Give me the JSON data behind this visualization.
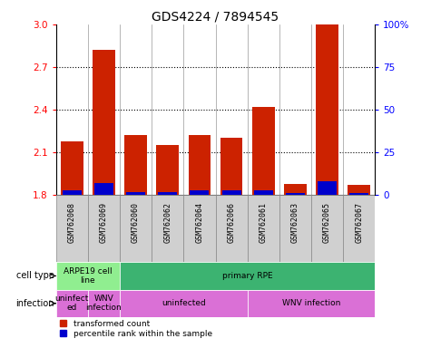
{
  "title": "GDS4224 / 7894545",
  "samples": [
    "GSM762068",
    "GSM762069",
    "GSM762060",
    "GSM762062",
    "GSM762064",
    "GSM762066",
    "GSM762061",
    "GSM762063",
    "GSM762065",
    "GSM762067"
  ],
  "red_values": [
    2.18,
    2.82,
    2.22,
    2.15,
    2.22,
    2.2,
    2.42,
    1.88,
    3.0,
    1.87
  ],
  "blue_pct": [
    3,
    7,
    2,
    2,
    3,
    3,
    3,
    1,
    8,
    1
  ],
  "ylim": [
    1.8,
    3.0
  ],
  "yticks": [
    1.8,
    2.1,
    2.4,
    2.7,
    3.0
  ],
  "right_yticks": [
    0,
    25,
    50,
    75,
    100
  ],
  "right_yticklabels": [
    "0",
    "25",
    "50",
    "75",
    "100%"
  ],
  "bar_color": "#cc2200",
  "blue_color": "#0000cc",
  "sample_bg": "#d0d0d0",
  "cell_type_color1": "#90ee90",
  "cell_type_color2": "#3cb371",
  "infection_color": "#da70d6",
  "title_fontsize": 10,
  "tick_fontsize": 7.5,
  "label_fontsize": 7
}
